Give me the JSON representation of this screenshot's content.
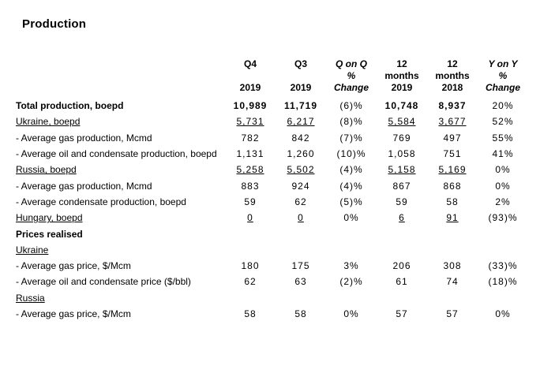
{
  "title": "Production",
  "colors": {
    "text": "#000000",
    "background": "#ffffff"
  },
  "table": {
    "columns": [
      {
        "line1": "Q4",
        "line2": "",
        "line3": "2019",
        "italic": false
      },
      {
        "line1": "Q3",
        "line2": "",
        "line3": "2019",
        "italic": false
      },
      {
        "line1": "Q on Q",
        "line2": "%",
        "line3": "Change",
        "italic": true
      },
      {
        "line1": "12",
        "line2": "months",
        "line3": "2019",
        "italic": false
      },
      {
        "line1": "12",
        "line2": "months",
        "line3": "2018",
        "italic": false
      },
      {
        "line1": "Y on Y",
        "line2": "%",
        "line3": "Change",
        "italic": true
      }
    ],
    "rows": [
      {
        "label": "Total production, boepd",
        "label_style": "bold",
        "values": [
          "10,989",
          "11,719",
          "(6)%",
          "10,748",
          "8,937",
          "20%"
        ],
        "value_styles": [
          "bold",
          "bold",
          "normal",
          "bold",
          "bold",
          "normal"
        ]
      },
      {
        "label": "Ukraine, boepd",
        "label_style": "underline",
        "values": [
          "5,731",
          "6,217",
          "(8)%",
          "5,584",
          "3,677",
          "52%"
        ],
        "value_styles": [
          "underline",
          "underline",
          "normal",
          "underline",
          "underline",
          "normal"
        ]
      },
      {
        "label": "- Average gas production, Mcmd",
        "label_style": "normal",
        "values": [
          "782",
          "842",
          "(7)%",
          "769",
          "497",
          "55%"
        ],
        "value_styles": [
          "normal",
          "normal",
          "normal",
          "normal",
          "normal",
          "normal"
        ]
      },
      {
        "label": "- Average oil and condensate production, boepd",
        "label_style": "normal",
        "values": [
          "1,131",
          "1,260",
          "(10)%",
          "1,058",
          "751",
          "41%"
        ],
        "value_styles": [
          "normal",
          "normal",
          "normal",
          "normal",
          "normal",
          "normal"
        ]
      },
      {
        "label": "Russia, boepd",
        "label_style": "underline",
        "values": [
          "5,258",
          "5,502",
          "(4)%",
          "5,158",
          "5,169",
          "0%"
        ],
        "value_styles": [
          "underline",
          "underline",
          "normal",
          "underline",
          "underline",
          "normal"
        ]
      },
      {
        "label": "- Average gas production, Mcmd",
        "label_style": "normal",
        "values": [
          "883",
          "924",
          "(4)%",
          "867",
          "868",
          "0%"
        ],
        "value_styles": [
          "normal",
          "normal",
          "normal",
          "normal",
          "normal",
          "normal"
        ]
      },
      {
        "label": "- Average condensate production, boepd",
        "label_style": "normal",
        "values": [
          "59",
          "62",
          "(5)%",
          "59",
          "58",
          "2%"
        ],
        "value_styles": [
          "normal",
          "normal",
          "normal",
          "normal",
          "normal",
          "normal"
        ]
      },
      {
        "label": "Hungary, boepd",
        "label_style": "underline",
        "values": [
          "0",
          "0",
          "0%",
          "6",
          "91",
          "(93)%"
        ],
        "value_styles": [
          "underline",
          "underline",
          "normal",
          "underline",
          "underline",
          "normal"
        ]
      },
      {
        "label": "Prices realised",
        "label_style": "bold",
        "values": [
          "",
          "",
          "",
          "",
          "",
          ""
        ],
        "value_styles": [
          "normal",
          "normal",
          "normal",
          "normal",
          "normal",
          "normal"
        ]
      },
      {
        "label": "Ukraine",
        "label_style": "underline",
        "values": [
          "",
          "",
          "",
          "",
          "",
          ""
        ],
        "value_styles": [
          "normal",
          "normal",
          "normal",
          "normal",
          "normal",
          "normal"
        ]
      },
      {
        "label": "- Average gas price, $/Mcm",
        "label_style": "normal",
        "values": [
          "180",
          "175",
          "3%",
          "206",
          "308",
          "(33)%"
        ],
        "value_styles": [
          "normal",
          "normal",
          "normal",
          "normal",
          "normal",
          "normal"
        ]
      },
      {
        "label": "- Average oil and condensate price ($/bbl)",
        "label_style": "normal",
        "values": [
          "62",
          "63",
          "(2)%",
          "61",
          "74",
          "(18)%"
        ],
        "value_styles": [
          "normal",
          "normal",
          "normal",
          "normal",
          "normal",
          "normal"
        ]
      },
      {
        "label": "Russia",
        "label_style": "underline",
        "values": [
          "",
          "",
          "",
          "",
          "",
          ""
        ],
        "value_styles": [
          "normal",
          "normal",
          "normal",
          "normal",
          "normal",
          "normal"
        ]
      },
      {
        "label": "- Average gas price, $/Mcm",
        "label_style": "normal",
        "values": [
          "58",
          "58",
          "0%",
          "57",
          "57",
          "0%"
        ],
        "value_styles": [
          "normal",
          "normal",
          "normal",
          "normal",
          "normal",
          "normal"
        ]
      }
    ]
  }
}
